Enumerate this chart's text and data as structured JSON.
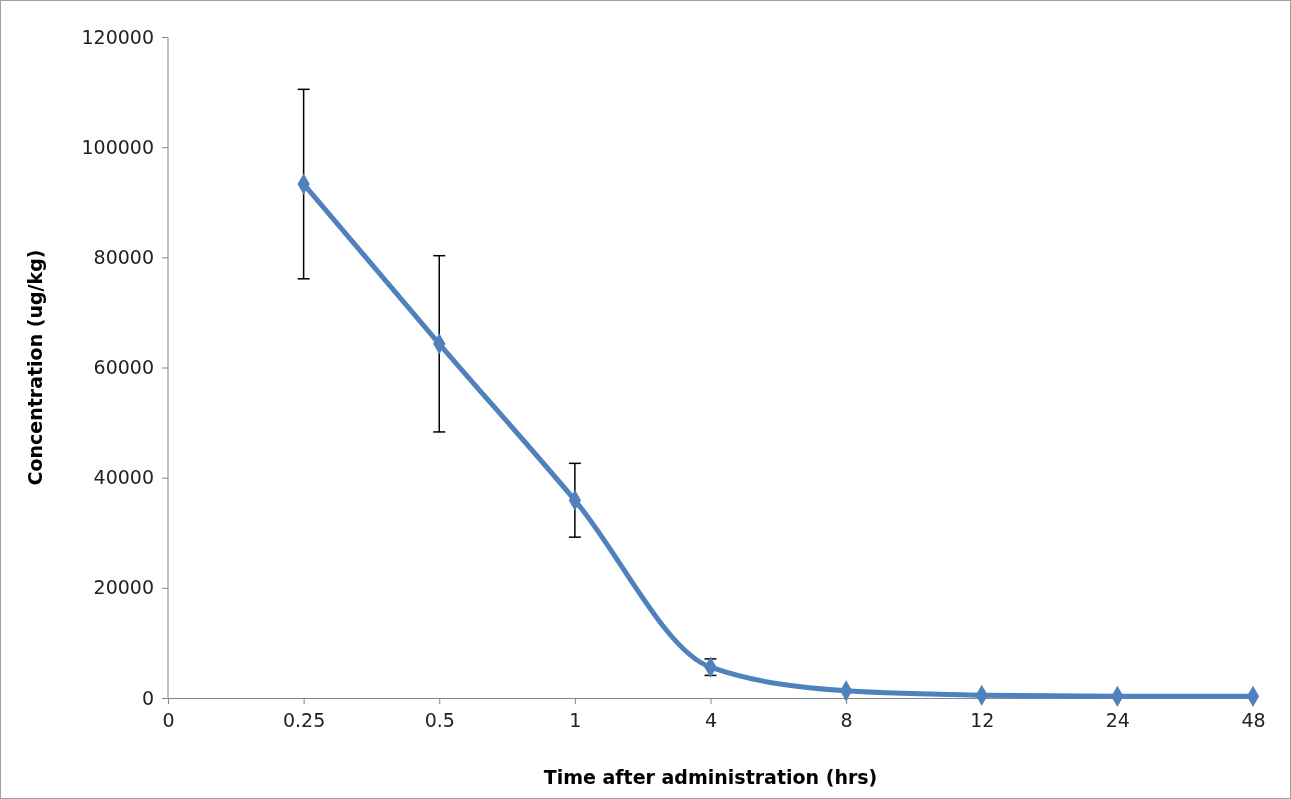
{
  "chart_data": {
    "type": "line",
    "xlabel": "Time after administration (hrs)",
    "ylabel": "Concentration (ug/kg)",
    "categories": [
      "0",
      "0.25",
      "0.5",
      "1",
      "4",
      "8",
      "12",
      "24",
      "48"
    ],
    "series": [
      {
        "color": "#4f81bd",
        "values": [
          null,
          93300,
          64300,
          35900,
          5600,
          1300,
          500,
          300,
          300
        ],
        "errors": [
          null,
          17200,
          16000,
          6700,
          1500,
          null,
          null,
          null,
          null
        ]
      }
    ],
    "ylim": [
      0,
      120000
    ],
    "yticks": [
      0,
      20000,
      40000,
      60000,
      80000,
      100000,
      120000
    ],
    "marker": "diamond",
    "line_style": "solid",
    "grid": false
  }
}
